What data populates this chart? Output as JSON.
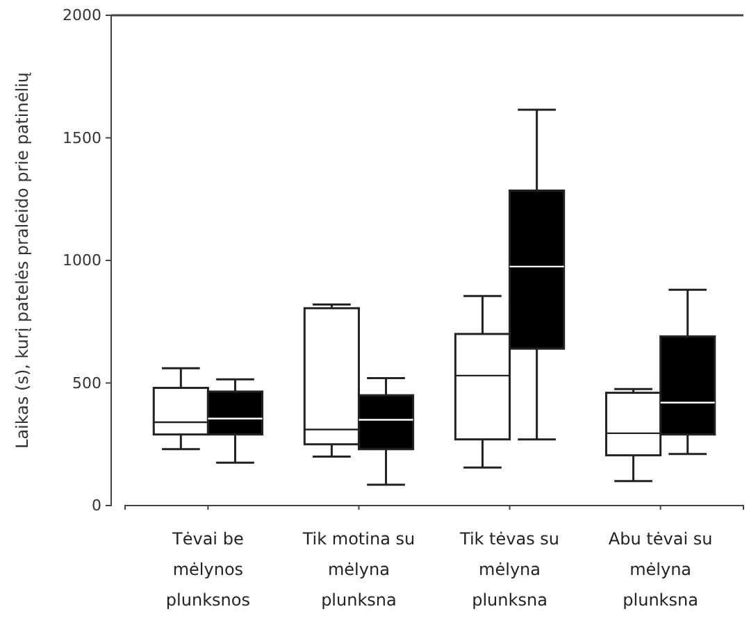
{
  "chart_data": {
    "type": "box",
    "ylabel": "Laikas (s), kurį patelės praleido prie patinėlių",
    "categories": [
      "Tėvai be mėlynos plunksnos",
      "Tik motina su mėlyna plunksna",
      "Tik tėvas su mėlyna plunksna",
      "Abu tėvai su mėlyna plunksna"
    ],
    "ylim": [
      0,
      2000
    ],
    "yticks": [
      0,
      500,
      1000,
      1500,
      2000
    ],
    "grid": false,
    "series": [
      {
        "color": "#ffffff",
        "boxes": [
          {
            "low": 230,
            "q1": 290,
            "median": 340,
            "q3": 480,
            "high": 560
          },
          {
            "low": 200,
            "q1": 250,
            "median": 310,
            "q3": 805,
            "high": 820
          },
          {
            "low": 155,
            "q1": 270,
            "median": 530,
            "q3": 700,
            "high": 855
          },
          {
            "low": 100,
            "q1": 205,
            "median": 295,
            "q3": 460,
            "high": 475
          }
        ]
      },
      {
        "color": "#000000",
        "boxes": [
          {
            "low": 175,
            "q1": 290,
            "median": 355,
            "q3": 465,
            "high": 515
          },
          {
            "low": 85,
            "q1": 230,
            "median": 350,
            "q3": 450,
            "high": 520
          },
          {
            "low": 270,
            "q1": 640,
            "median": 975,
            "q3": 1285,
            "high": 1615
          },
          {
            "low": 210,
            "q1": 290,
            "median": 420,
            "q3": 690,
            "high": 880
          }
        ]
      }
    ]
  }
}
